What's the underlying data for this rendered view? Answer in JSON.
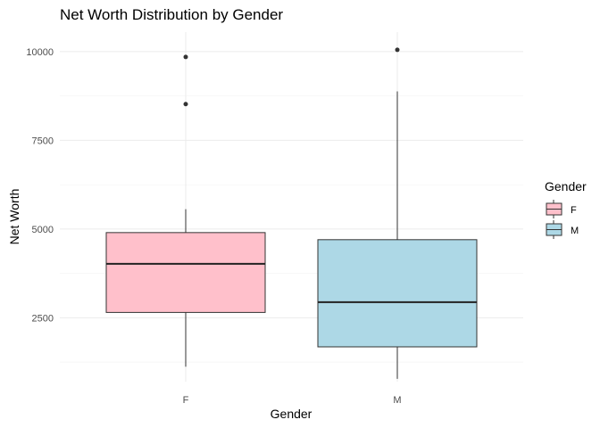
{
  "chart_data": {
    "type": "box",
    "title": "Net Worth Distribution by Gender",
    "xlabel": "Gender",
    "ylabel": "Net Worth",
    "categories": [
      "F",
      "M"
    ],
    "yticks": [
      2500,
      5000,
      7500,
      10000
    ],
    "ylim": [
      700,
      10550
    ],
    "grid": true,
    "legend": {
      "title": "Gender",
      "placement": "right",
      "items": [
        {
          "label": "F",
          "color": "#FFC0CB"
        },
        {
          "label": "M",
          "color": "#ADD8E6"
        }
      ]
    },
    "boxes": [
      {
        "category": "F",
        "whisker_low": 1120,
        "q1": 2650,
        "median": 4020,
        "q3": 4900,
        "whisker_high": 5560,
        "outliers": [
          8520,
          9850
        ],
        "fill": "#FFC0CB"
      },
      {
        "category": "M",
        "whisker_low": 780,
        "q1": 1680,
        "median": 2940,
        "q3": 4700,
        "whisker_high": 8880,
        "outliers": [
          10050
        ],
        "fill": "#ADD8E6"
      }
    ]
  }
}
